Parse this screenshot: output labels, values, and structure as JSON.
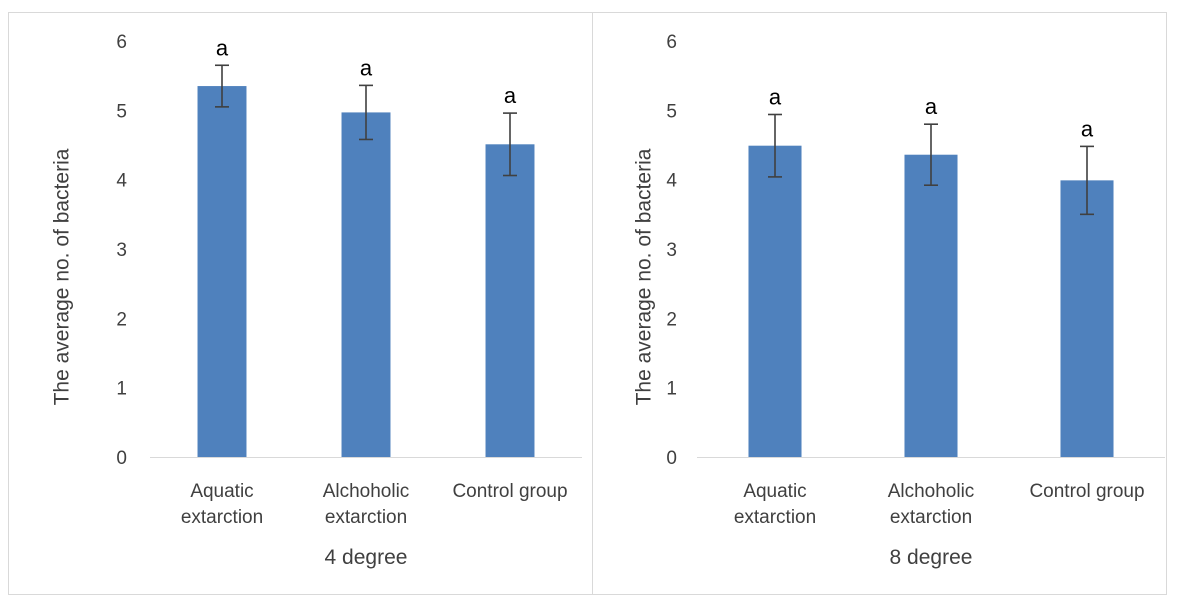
{
  "chart_data": [
    {
      "type": "bar",
      "title": "",
      "xlabel": "4 degree",
      "ylabel": "The average no. of bacteria",
      "ylim": [
        0,
        6
      ],
      "yticks": [
        "0",
        "1",
        "2",
        "3",
        "4",
        "5",
        "6"
      ],
      "grid": false,
      "legend": "none",
      "categories": [
        [
          "Aquatic",
          "extarction"
        ],
        [
          "Alchoholic",
          "extarction"
        ],
        [
          "Control group"
        ]
      ],
      "series": [
        {
          "values": [
            5.35,
            4.97,
            4.51
          ],
          "error": [
            0.3,
            0.39,
            0.45
          ],
          "labels": [
            "a",
            "a",
            "a"
          ]
        }
      ],
      "bar_color": "#4F81BD"
    },
    {
      "type": "bar",
      "title": "",
      "xlabel": "8 degree",
      "ylabel": "The average no. of bacteria",
      "ylim": [
        0,
        6
      ],
      "yticks": [
        "0",
        "1",
        "2",
        "3",
        "4",
        "5",
        "6"
      ],
      "grid": false,
      "legend": "none",
      "categories": [
        [
          "Aquatic",
          "extarction"
        ],
        [
          "Alchoholic",
          "extarction"
        ],
        [
          "Control group"
        ]
      ],
      "series": [
        {
          "values": [
            4.49,
            4.36,
            3.99
          ],
          "error": [
            0.45,
            0.44,
            0.49
          ],
          "labels": [
            "a",
            "a",
            "a"
          ]
        }
      ],
      "bar_color": "#4F81BD"
    }
  ]
}
